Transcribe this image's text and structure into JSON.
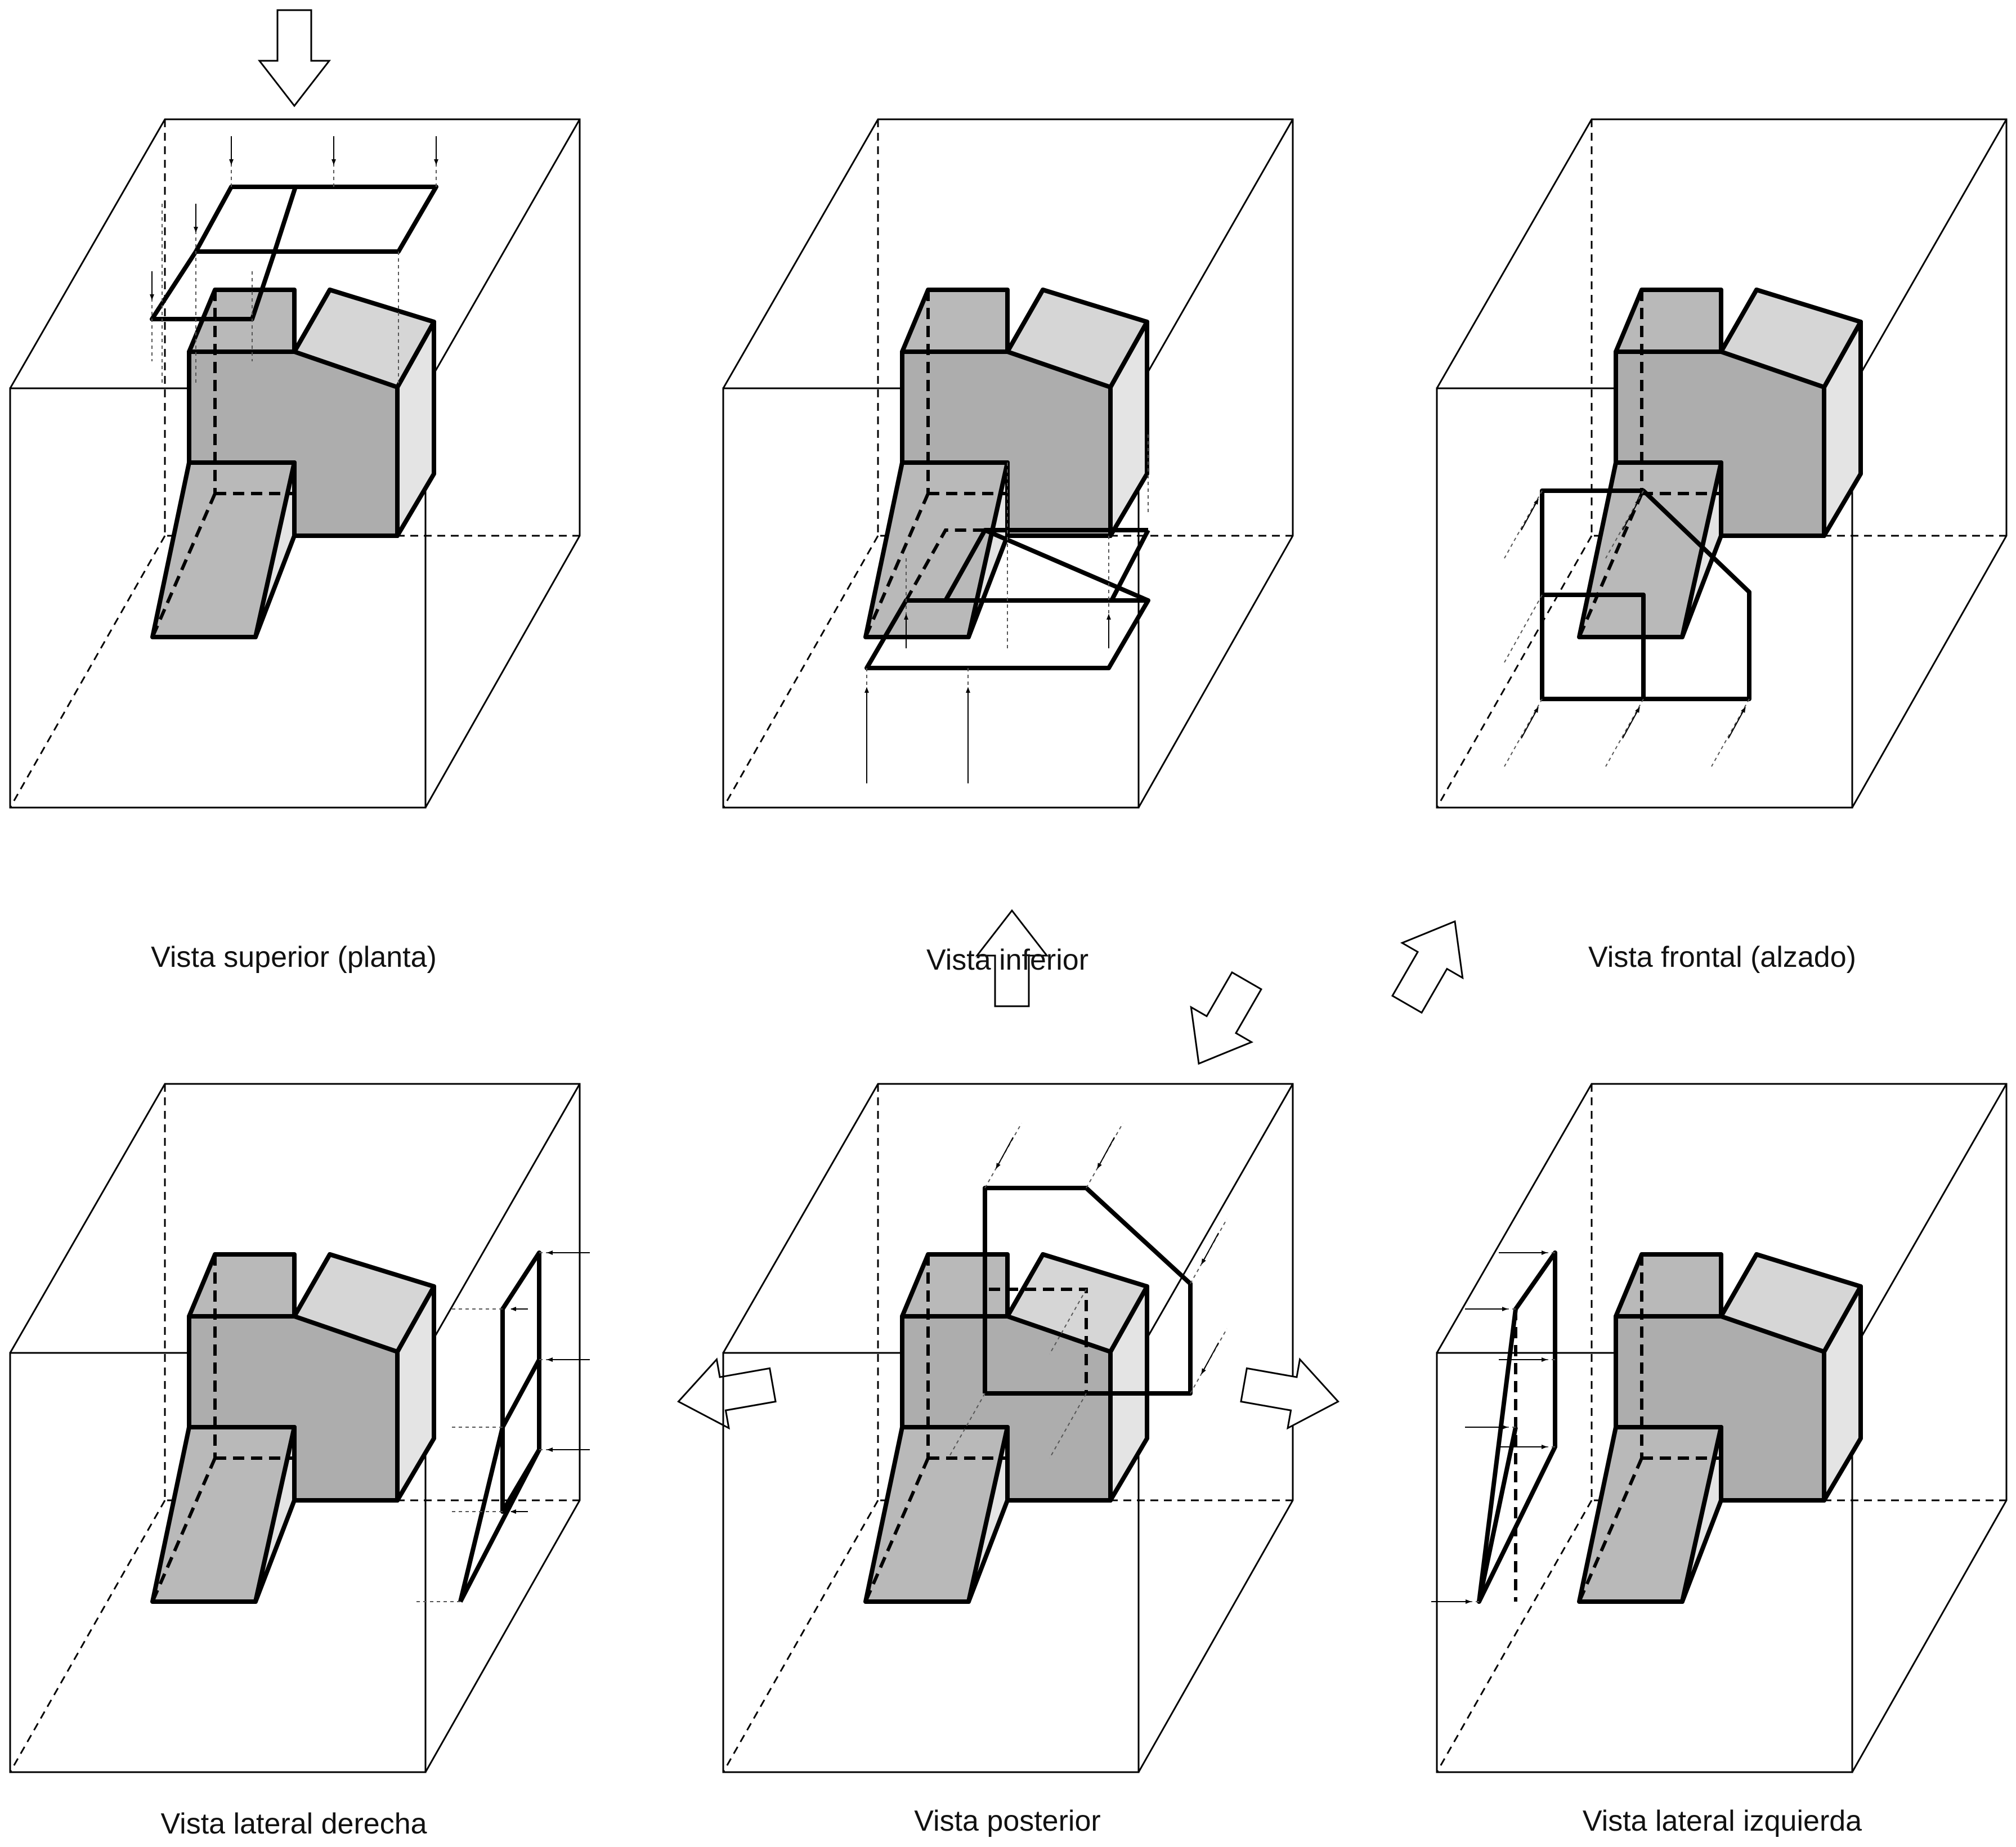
{
  "figure": {
    "views": [
      {
        "id": "top",
        "caption": "Vista superior (planta)"
      },
      {
        "id": "bottom",
        "caption": "Vista inferior"
      },
      {
        "id": "front",
        "caption": "Vista frontal (alzado)"
      },
      {
        "id": "right",
        "caption": "Vista lateral derecha"
      },
      {
        "id": "back",
        "caption": "Vista posterior"
      },
      {
        "id": "left",
        "caption": "Vista lateral izquierda"
      }
    ],
    "colors": {
      "face_front": "#adadad",
      "face_top": "#b9b9b9",
      "face_light": "#d6d6d6",
      "face_side": "#e4e4e4",
      "line": "#000000"
    },
    "icons": [
      "view-direction-arrow-icon"
    ]
  }
}
